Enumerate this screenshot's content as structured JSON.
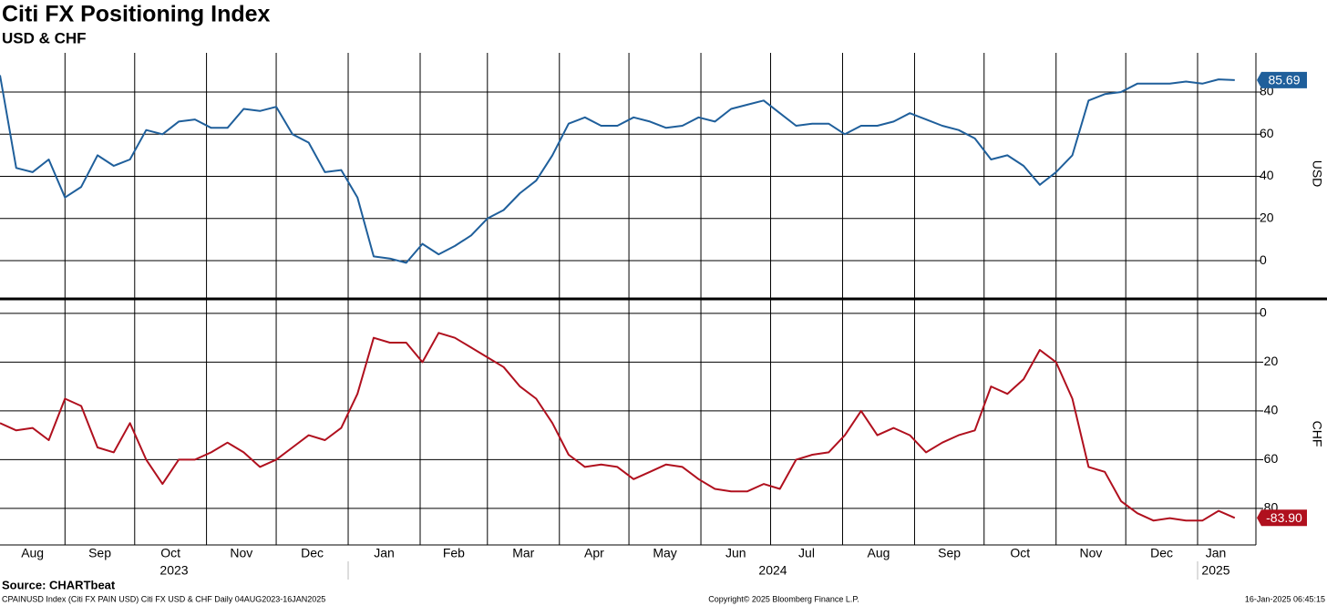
{
  "title": "Citi FX Positioning Index",
  "subtitle": "USD & CHF",
  "x_axis": {
    "xlim": [
      0,
      77.3
    ],
    "xticks": [
      {
        "value": -0.43,
        "label": "Aug"
      },
      {
        "value": 4.0,
        "label": "Sep"
      },
      {
        "value": 8.29,
        "label": "Oct"
      },
      {
        "value": 12.71,
        "label": "Nov"
      },
      {
        "value": 17.0,
        "label": "Dec"
      },
      {
        "value": 21.43,
        "label": "Jan"
      },
      {
        "value": 25.86,
        "label": "Feb"
      },
      {
        "value": 30.0,
        "label": "Mar"
      },
      {
        "value": 34.43,
        "label": "Apr"
      },
      {
        "value": 38.71,
        "label": "May"
      },
      {
        "value": 43.14,
        "label": "Jun"
      },
      {
        "value": 47.43,
        "label": "Jul"
      },
      {
        "value": 51.86,
        "label": "Aug"
      },
      {
        "value": 56.29,
        "label": "Sep"
      },
      {
        "value": 60.57,
        "label": "Oct"
      },
      {
        "value": 65.0,
        "label": "Nov"
      },
      {
        "value": 69.29,
        "label": "Dec"
      },
      {
        "value": 73.71,
        "label": "Jan"
      }
    ],
    "years": [
      "2023",
      "2024",
      "2025"
    ]
  },
  "chart_data": [
    {
      "type": "line",
      "ylabel": "USD",
      "ylim": [
        -17.7,
        98.6
      ],
      "yticks": [
        0,
        20,
        40,
        60,
        80
      ],
      "grid": true,
      "series": [
        {
          "name": "USD",
          "color": "#1f5f9b",
          "values": [
            88,
            44,
            42,
            48,
            30,
            35,
            50,
            45,
            48,
            62,
            60,
            66,
            67,
            63,
            63,
            72,
            71,
            73,
            60,
            56,
            42,
            43,
            30,
            2,
            1,
            -1,
            8,
            3,
            7,
            12,
            20,
            24,
            32,
            38,
            50,
            65,
            68,
            64,
            64,
            68,
            66,
            63,
            64,
            68,
            66,
            72,
            74,
            76,
            70,
            64,
            65,
            65,
            60,
            64,
            64,
            66,
            70,
            67,
            64,
            62,
            58,
            48,
            50,
            45,
            36,
            42,
            50,
            76,
            79,
            80,
            84,
            84,
            84,
            85,
            84,
            86,
            85.69
          ],
          "value_labels": [
            null,
            null,
            null,
            null,
            null,
            null,
            null,
            null,
            null,
            null,
            null,
            null,
            null,
            null,
            null,
            null,
            null,
            null,
            null,
            null,
            null,
            null,
            null,
            null,
            null,
            null,
            null,
            null,
            null,
            null,
            null,
            null,
            null,
            null,
            null,
            null,
            null,
            null,
            null,
            null,
            null,
            null,
            null,
            null,
            null,
            null,
            null,
            null,
            null,
            null,
            null,
            null,
            null,
            null,
            null,
            null,
            null,
            null,
            null,
            null,
            null,
            null,
            null,
            null,
            null,
            null,
            null,
            null,
            null,
            null,
            null,
            null,
            null,
            null,
            null,
            null,
            "85.69"
          ]
        }
      ]
    },
    {
      "type": "line",
      "ylabel": "CHF",
      "ylim": [
        -95,
        5.2
      ],
      "yticks": [
        0,
        -20,
        -40,
        -60,
        -80
      ],
      "grid": true,
      "series": [
        {
          "name": "CHF",
          "color": "#b0101e",
          "values": [
            -45,
            -48,
            -47,
            -52,
            -35,
            -38,
            -55,
            -57,
            -45,
            -60,
            -70,
            -60,
            -60,
            -57,
            -53,
            -57,
            -63,
            -60,
            -55,
            -50,
            -52,
            -47,
            -33,
            -10,
            -12,
            -12,
            -20,
            -8,
            -10,
            -14,
            -18,
            -22,
            -30,
            -35,
            -45,
            -58,
            -63,
            -62,
            -63,
            -68,
            -65,
            -62,
            -63,
            -68,
            -72,
            -73,
            -73,
            -70,
            -72,
            -60,
            -58,
            -57,
            -50,
            -40,
            -50,
            -47,
            -50,
            -57,
            -53,
            -50,
            -48,
            -30,
            -33,
            -27,
            -15,
            -20,
            -35,
            -63,
            -65,
            -77,
            -82,
            -85,
            -84,
            -85,
            -85,
            -81,
            -83.9
          ],
          "value_labels": [
            null,
            null,
            null,
            null,
            null,
            null,
            null,
            null,
            null,
            null,
            null,
            null,
            null,
            null,
            null,
            null,
            null,
            null,
            null,
            null,
            null,
            null,
            null,
            null,
            null,
            null,
            null,
            null,
            null,
            null,
            null,
            null,
            null,
            null,
            null,
            null,
            null,
            null,
            null,
            null,
            null,
            null,
            null,
            null,
            null,
            null,
            null,
            null,
            null,
            null,
            null,
            null,
            null,
            null,
            null,
            null,
            null,
            null,
            null,
            null,
            null,
            null,
            null,
            null,
            null,
            null,
            null,
            null,
            null,
            null,
            null,
            null,
            null,
            null,
            null,
            null,
            "-83.90"
          ]
        }
      ]
    }
  ],
  "source": "Source: CHARTbeat",
  "footer": [
    "CPAINUSD Index (Citi FX PAIN USD) Citi FX USD & CHF  Daily 04AUG2023-16JAN2025",
    "Copyright© 2025 Bloomberg Finance L.P.",
    "16-Jan-2025 06:45:15"
  ]
}
